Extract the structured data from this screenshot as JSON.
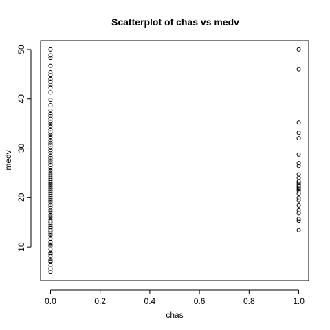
{
  "chart_data": {
    "type": "scatter",
    "title": "Scatterplot of chas vs medv",
    "xlabel": "chas",
    "ylabel": "medv",
    "xlim": [
      -0.04,
      1.04
    ],
    "ylim": [
      3.2,
      51.8
    ],
    "xticks": [
      0.0,
      0.2,
      0.4,
      0.6,
      0.8,
      1.0
    ],
    "xtick_labels": [
      "0.0",
      "0.2",
      "0.4",
      "0.6",
      "0.8",
      "1.0"
    ],
    "yticks": [
      10,
      20,
      30,
      40,
      50
    ],
    "ytick_labels": [
      "10",
      "20",
      "30",
      "40",
      "50"
    ],
    "grid": false,
    "series": [
      {
        "x_value": 0,
        "y": [
          5.0,
          5.6,
          6.3,
          7.0,
          7.2,
          7.5,
          8.1,
          8.5,
          8.8,
          9.5,
          10.2,
          10.5,
          11.0,
          11.7,
          12.3,
          12.7,
          13.1,
          13.4,
          13.8,
          14.1,
          14.5,
          14.9,
          15.2,
          15.6,
          16.1,
          16.5,
          17.1,
          17.5,
          18.0,
          18.5,
          19.0,
          19.4,
          19.8,
          20.2,
          20.6,
          21.0,
          21.4,
          21.8,
          22.2,
          22.6,
          23.0,
          23.4,
          23.8,
          24.2,
          24.6,
          25.0,
          25.5,
          26.0,
          26.6,
          27.1,
          27.5,
          28.0,
          28.5,
          29.1,
          29.6,
          30.1,
          30.7,
          31.1,
          31.6,
          32.2,
          32.7,
          33.2,
          33.8,
          34.4,
          34.9,
          35.4,
          36.0,
          36.5,
          37.0,
          37.6,
          38.7,
          39.8,
          41.3,
          42.3,
          42.8,
          43.5,
          44.0,
          44.8,
          45.4,
          46.7,
          48.3,
          48.8,
          50.0
        ]
      },
      {
        "x_value": 1,
        "y": [
          13.4,
          15.3,
          15.7,
          16.8,
          17.4,
          18.4,
          19.4,
          20.0,
          20.8,
          21.4,
          21.7,
          22.0,
          22.3,
          22.6,
          23.0,
          23.3,
          24.0,
          24.7,
          26.4,
          27.0,
          28.7,
          32.0,
          33.1,
          35.2,
          46.0,
          50.0
        ]
      }
    ]
  }
}
